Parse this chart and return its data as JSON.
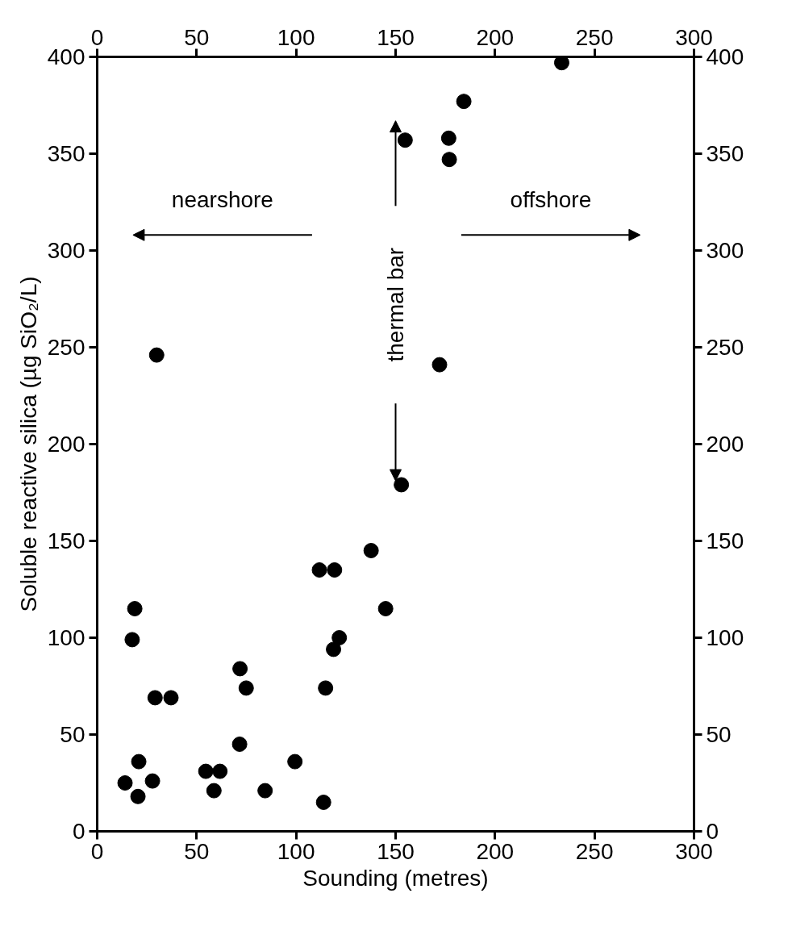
{
  "chart_data": {
    "type": "scatter",
    "xlabel": "Sounding (metres)",
    "ylabel": "Soluble reactive silica (µg SiO₂/L)",
    "xlim": [
      0,
      300
    ],
    "xticks": [
      0,
      50,
      100,
      150,
      200,
      250,
      300
    ],
    "x2lim": [
      0,
      300
    ],
    "x2ticks": [
      0,
      50,
      100,
      150,
      200,
      250,
      300
    ],
    "ylim": [
      0,
      400
    ],
    "yticks": [
      0,
      50,
      100,
      150,
      200,
      250,
      300,
      350,
      400
    ],
    "y2lim": [
      0,
      400
    ],
    "y2ticks": [
      0,
      50,
      100,
      150,
      200,
      250,
      300,
      350,
      400
    ],
    "marker": "circle",
    "grid": false,
    "series": [
      {
        "color": "#000000",
        "x": [
          17.6,
          18.9,
          29.1,
          37.1,
          71.8,
          74.9,
          114.8,
          118.8,
          121.7,
          71.6,
          20.9,
          14,
          27.8,
          20.5,
          54.6,
          61.7,
          58.7,
          84.4,
          99.4,
          113.8,
          29.9,
          172.1,
          152.9,
          137.7,
          111.7,
          119.3,
          145,
          233.5,
          184.3,
          154.8,
          176.7,
          177
        ],
        "values": [
          99,
          115,
          69,
          69,
          84,
          74,
          74,
          94,
          100,
          45,
          36,
          25,
          26,
          18,
          31,
          31,
          21,
          21,
          36,
          15,
          246,
          241,
          179,
          145,
          135,
          135,
          115,
          397,
          377,
          357,
          358,
          347
        ]
      }
    ],
    "annotations": [
      "nearshore",
      "offshore",
      "thermal bar"
    ]
  }
}
